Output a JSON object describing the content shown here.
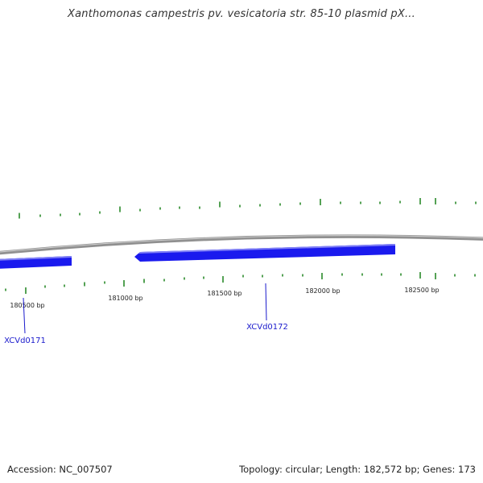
{
  "title": "Xanthomonas campestris pv. vesicatoria str. 85-10 plasmid pX...",
  "footer": {
    "accession": "Accession: NC_007507",
    "stats": "Topology: circular; Length: 182,572 bp; Genes: 173"
  },
  "colors": {
    "gene": "#1a1aee",
    "gene_highlight": "#7f7ff5",
    "backbone": "#909090",
    "gc_tick": "#2a8a2a",
    "label": "#1a1acc"
  },
  "position_labels": [
    "180500 bp",
    "181000 bp",
    "181500 bp",
    "182000 bp",
    "182500 bp"
  ],
  "genes": [
    {
      "name": "XCVd0171"
    },
    {
      "name": "XCVd0172"
    }
  ]
}
